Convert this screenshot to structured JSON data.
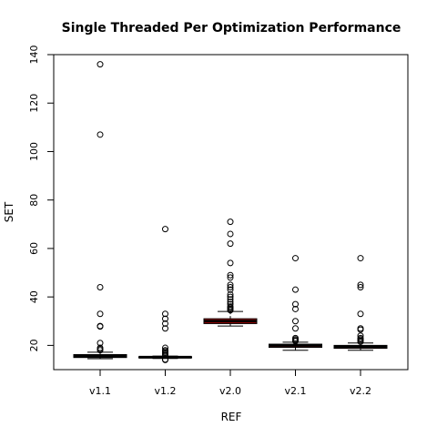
{
  "chart_data": {
    "type": "boxplot",
    "title": "Single Threaded Per Optimization Performance",
    "xlabel": "REF",
    "ylabel": "SET",
    "ylim": [
      10,
      140
    ],
    "y_ticks": [
      20,
      40,
      60,
      80,
      100,
      120,
      140
    ],
    "categories": [
      "v1.1",
      "v1.2",
      "v2.0",
      "v2.1",
      "v2.2"
    ],
    "box_color": "#cc0000",
    "series": [
      {
        "category": "v1.1",
        "whisker_low": 14.5,
        "q1": 15.0,
        "median": 15.5,
        "q3": 16.2,
        "whisker_high": 17.2,
        "outliers": [
          136,
          107,
          44,
          33,
          28,
          27.8,
          21,
          19,
          18.5,
          18
        ]
      },
      {
        "category": "v1.2",
        "whisker_low": 14.6,
        "q1": 14.9,
        "median": 15.1,
        "q3": 15.3,
        "whisker_high": 15.6,
        "outliers": [
          68,
          33,
          31,
          29,
          27,
          19,
          18,
          17.5,
          17,
          16.5,
          16,
          14.2,
          14
        ]
      },
      {
        "category": "v2.0",
        "whisker_low": 28.0,
        "q1": 29.0,
        "median": 30.0,
        "q3": 31.0,
        "whisker_high": 34.0,
        "outliers": [
          71,
          66,
          62,
          54,
          49,
          48,
          45,
          44,
          43,
          41,
          40,
          39,
          38,
          37,
          36,
          35.5,
          35,
          34.5
        ]
      },
      {
        "category": "v2.1",
        "whisker_low": 18.0,
        "q1": 19.2,
        "median": 20.0,
        "q3": 20.5,
        "whisker_high": 21.3,
        "outliers": [
          56,
          43,
          37,
          35,
          30,
          27,
          23,
          22.5,
          22,
          21.8
        ]
      },
      {
        "category": "v2.2",
        "whisker_low": 18.0,
        "q1": 18.8,
        "median": 19.5,
        "q3": 20.0,
        "whisker_high": 21.0,
        "outliers": [
          56,
          45,
          44,
          33,
          27,
          26.5,
          24,
          23,
          22.5,
          22,
          21.5
        ]
      }
    ]
  }
}
